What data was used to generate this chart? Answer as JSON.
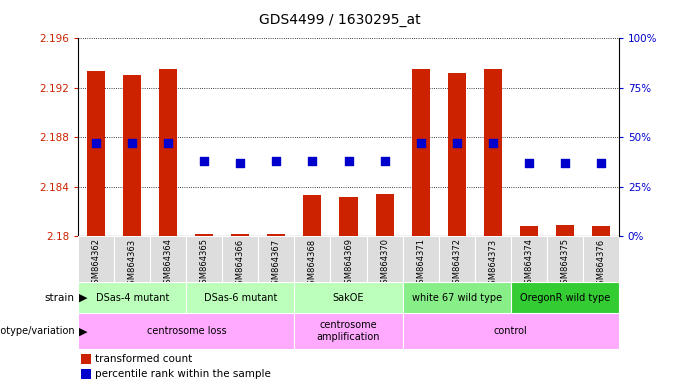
{
  "title": "GDS4499 / 1630295_at",
  "samples": [
    "GSM864362",
    "GSM864363",
    "GSM864364",
    "GSM864365",
    "GSM864366",
    "GSM864367",
    "GSM864368",
    "GSM864369",
    "GSM864370",
    "GSM864371",
    "GSM864372",
    "GSM864373",
    "GSM864374",
    "GSM864375",
    "GSM864376"
  ],
  "transformed_count": [
    2.1934,
    2.193,
    2.1935,
    2.1802,
    2.1802,
    2.1802,
    2.1833,
    2.1832,
    2.1834,
    2.1935,
    2.1932,
    2.1935,
    2.1808,
    2.1809,
    2.1808
  ],
  "percentile_rank": [
    47,
    47,
    47,
    38,
    37,
    38,
    38,
    38,
    38,
    47,
    47,
    47,
    37,
    37,
    37
  ],
  "ylim_left": [
    2.18,
    2.196
  ],
  "ylim_right": [
    0,
    100
  ],
  "yticks_left": [
    2.18,
    2.184,
    2.188,
    2.192,
    2.196
  ],
  "yticks_right": [
    0,
    25,
    50,
    75,
    100
  ],
  "bar_color": "#cc2200",
  "dot_color": "#0000cc",
  "bar_width": 0.5,
  "dot_size": 30,
  "grid_color": "#000000",
  "bg_color": "#ffffff",
  "plot_bg": "#ffffff",
  "strain_regions": [
    {
      "text": "DSas-4 mutant",
      "start": 0,
      "end": 2,
      "color": "#bbffbb"
    },
    {
      "text": "DSas-6 mutant",
      "start": 3,
      "end": 5,
      "color": "#bbffbb"
    },
    {
      "text": "SakOE",
      "start": 6,
      "end": 8,
      "color": "#bbffbb"
    },
    {
      "text": "white 67 wild type",
      "start": 9,
      "end": 11,
      "color": "#88ee88"
    },
    {
      "text": "OregonR wild type",
      "start": 12,
      "end": 14,
      "color": "#33cc33"
    }
  ],
  "geno_regions": [
    {
      "text": "centrosome loss",
      "start": 0,
      "end": 5,
      "color": "#ffaaff"
    },
    {
      "text": "centrosome\namplification",
      "start": 6,
      "end": 8,
      "color": "#ffaaff"
    },
    {
      "text": "control",
      "start": 9,
      "end": 14,
      "color": "#ffaaff"
    }
  ],
  "legend_items": [
    {
      "color": "#cc2200",
      "label": "transformed count"
    },
    {
      "color": "#0000cc",
      "label": "percentile rank within the sample"
    }
  ],
  "left_label_color": "#cc2200",
  "right_label_color": "#0000cc",
  "xticklabel_bg": "#dddddd"
}
